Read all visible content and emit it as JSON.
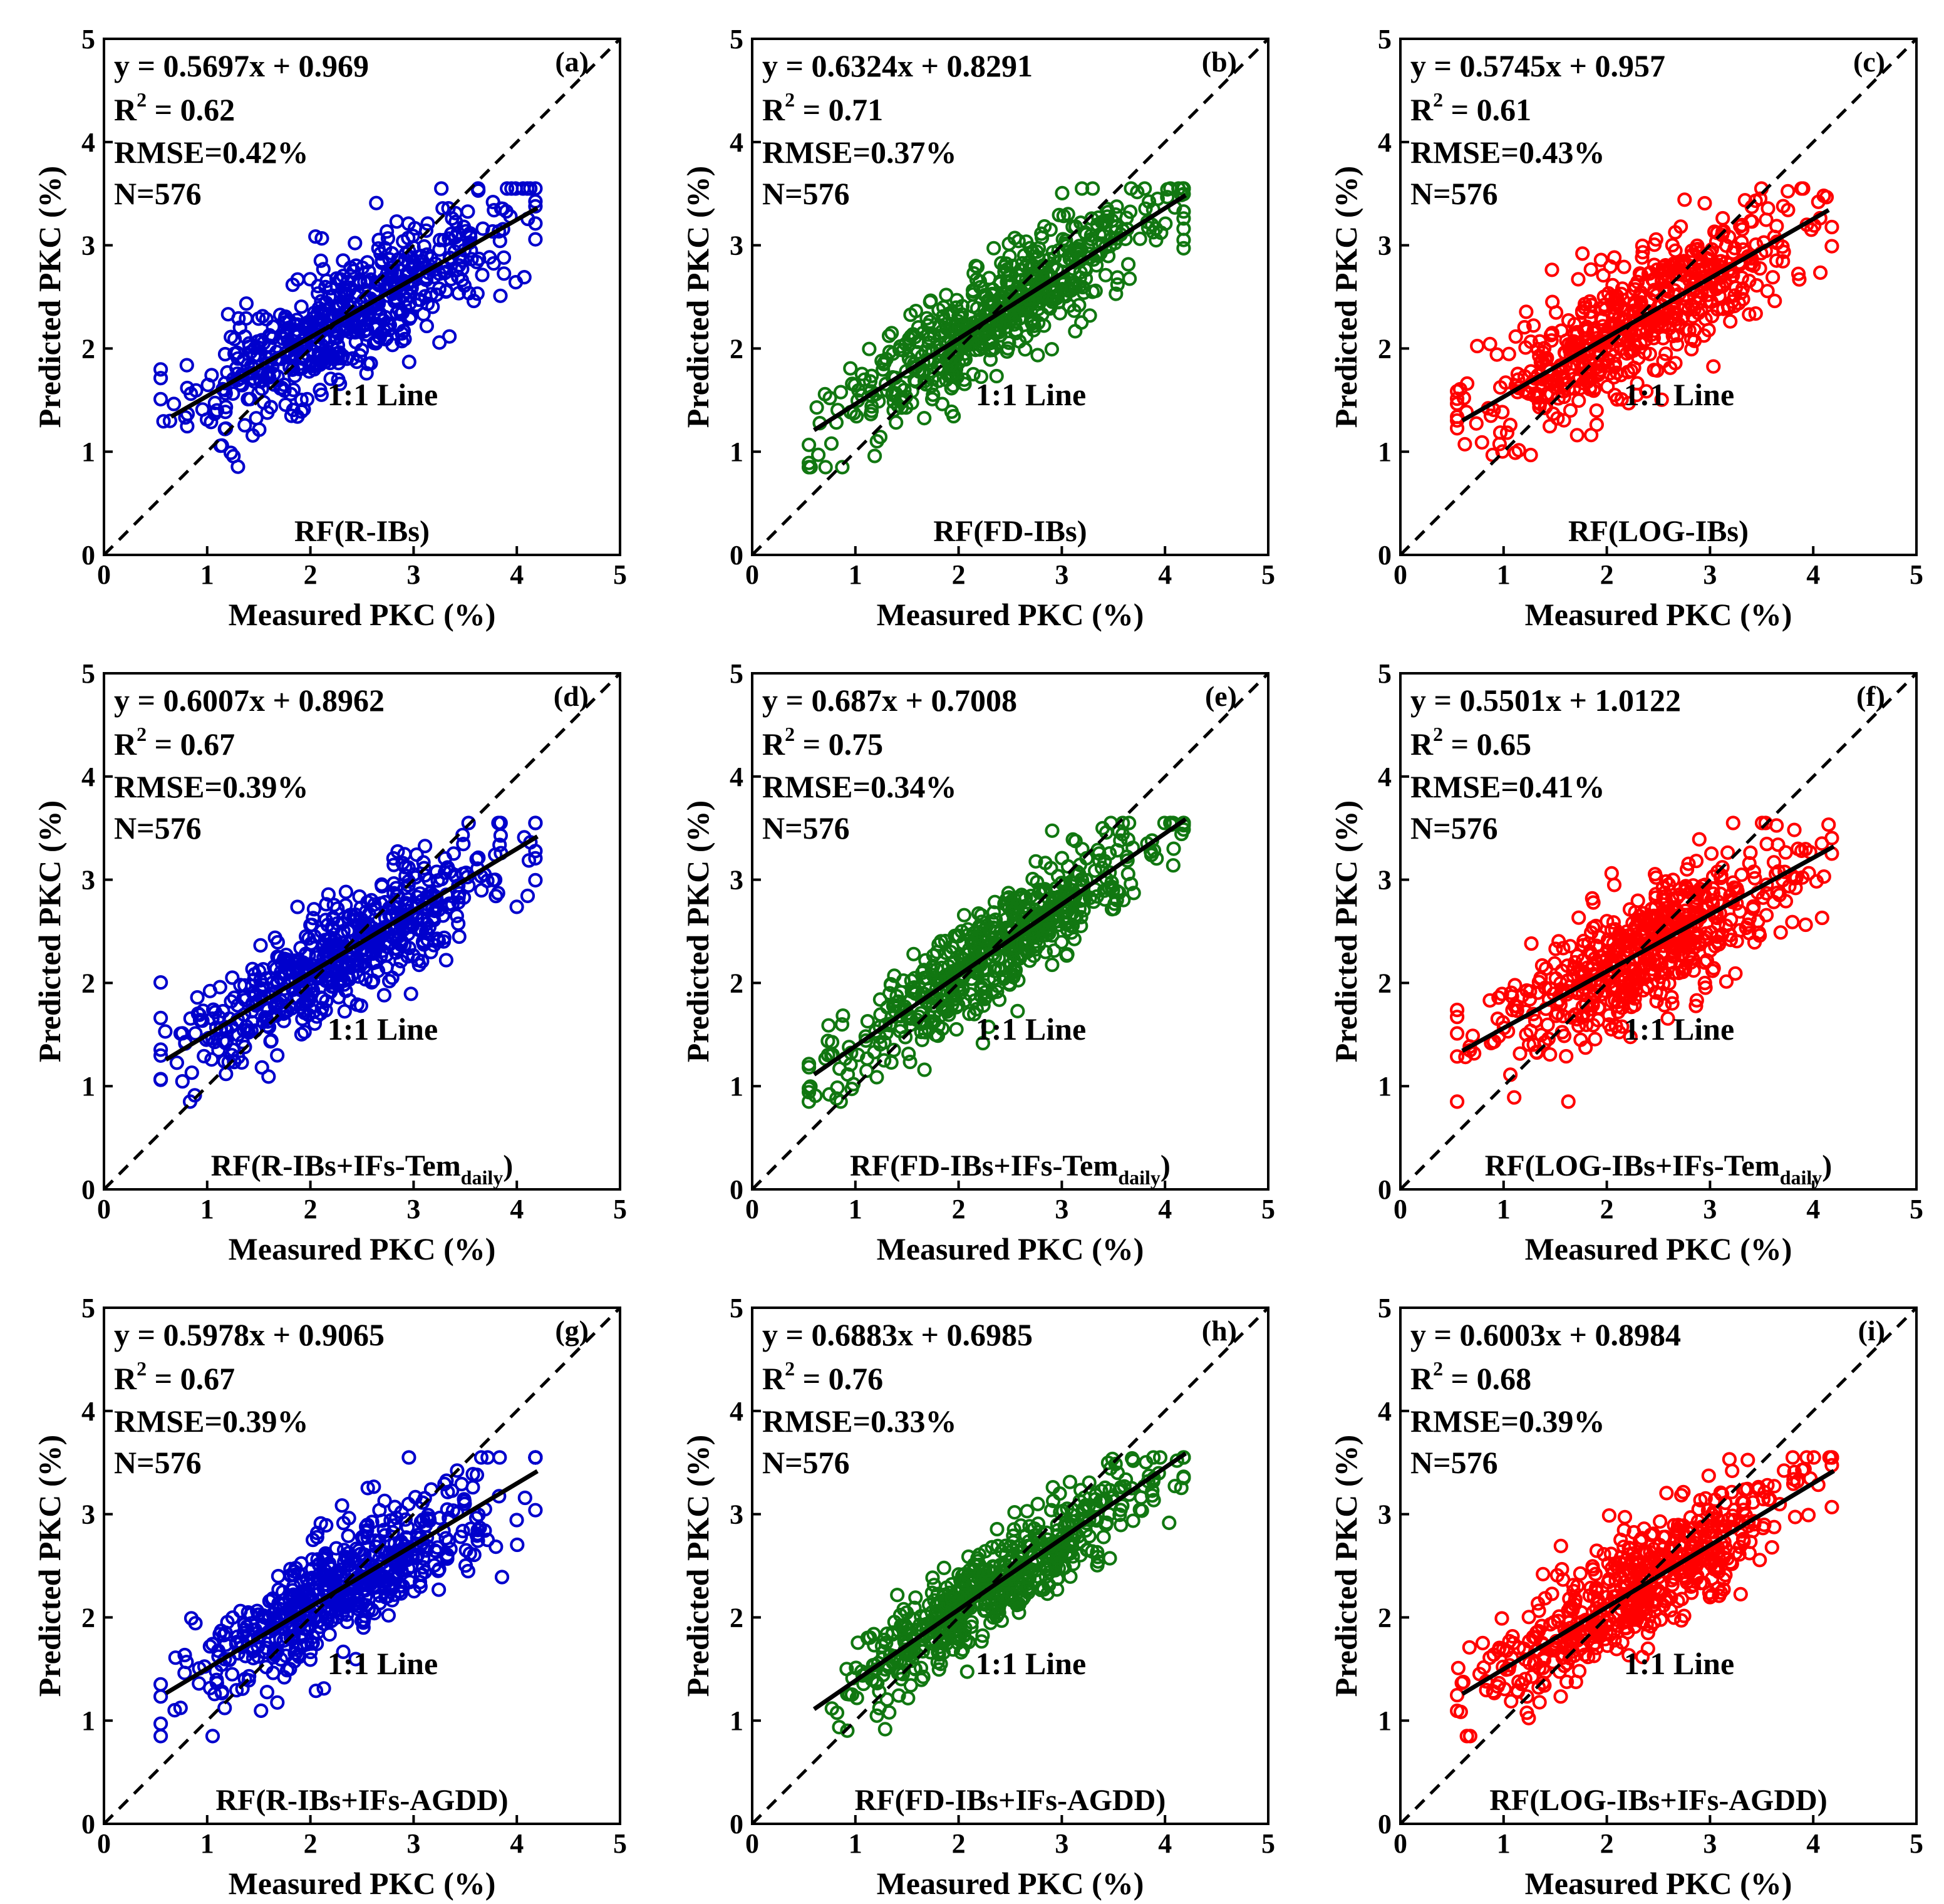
{
  "figure": {
    "description_free": true
  },
  "chart_data": [
    {
      "id": "a",
      "type": "scatter",
      "series_color": "#0000cc",
      "panel_label": "(a)",
      "model_label": "RF(R-IBs)",
      "model_sub": "",
      "model_tail": "",
      "equation": "y = 0.5697x + 0.969",
      "slope": 0.5697,
      "intercept": 0.969,
      "r2_label": "R",
      "r2_sup": "2",
      "r2_value": " = 0.62",
      "rmse": "RMSE=0.42%",
      "n": "N=576",
      "one_to_one": "1:1 Line",
      "xlabel": "Measured PKC (%)",
      "ylabel": "Predicted PKC (%)",
      "xlim": [
        0,
        5
      ],
      "ylim": [
        0,
        5
      ],
      "xticks": [
        "0",
        "1",
        "2",
        "3",
        "4",
        "5"
      ],
      "yticks": [
        "0",
        "1",
        "2",
        "3",
        "4",
        "5"
      ],
      "fit_x_range": [
        0.65,
        4.2
      ],
      "point_count": 576,
      "seed": 11,
      "noise": 0.3
    },
    {
      "id": "b",
      "type": "scatter",
      "series_color": "#117711",
      "panel_label": "(b)",
      "model_label": "RF(FD-IBs)",
      "model_sub": "",
      "model_tail": "",
      "equation": "y = 0.6324x + 0.8291",
      "slope": 0.6324,
      "intercept": 0.8291,
      "r2_label": "R",
      "r2_sup": "2",
      "r2_value": " = 0.71",
      "rmse": "RMSE=0.37%",
      "n": "N=576",
      "one_to_one": "1:1 Line",
      "xlabel": "Measured PKC (%)",
      "ylabel": "Predicted PKC (%)",
      "xlim": [
        0,
        5
      ],
      "ylim": [
        0,
        5
      ],
      "xticks": [
        "0",
        "1",
        "2",
        "3",
        "4",
        "5"
      ],
      "yticks": [
        "0",
        "1",
        "2",
        "3",
        "4",
        "5"
      ],
      "fit_x_range": [
        0.6,
        4.2
      ],
      "point_count": 576,
      "seed": 23,
      "noise": 0.26
    },
    {
      "id": "c",
      "type": "scatter",
      "series_color": "#ff0000",
      "panel_label": "(c)",
      "model_label": "RF(LOG-IBs)",
      "model_sub": "",
      "model_tail": "",
      "equation": "y = 0.5745x + 0.957",
      "slope": 0.5745,
      "intercept": 0.957,
      "r2_label": "R",
      "r2_sup": "2",
      "r2_value": " = 0.61",
      "rmse": "RMSE=0.43%",
      "n": "N=576",
      "one_to_one": "1:1 Line",
      "xlabel": "Measured PKC (%)",
      "ylabel": "Predicted PKC (%)",
      "xlim": [
        0,
        5
      ],
      "ylim": [
        0,
        5
      ],
      "xticks": [
        "0",
        "1",
        "2",
        "3",
        "4",
        "5"
      ],
      "yticks": [
        "0",
        "1",
        "2",
        "3",
        "4",
        "5"
      ],
      "fit_x_range": [
        0.6,
        4.15
      ],
      "point_count": 576,
      "seed": 37,
      "noise": 0.31
    },
    {
      "id": "d",
      "type": "scatter",
      "series_color": "#0000cc",
      "panel_label": "(d)",
      "model_label": "RF(R-IBs+IFs-Tem",
      "model_sub": "daily",
      "model_tail": ")",
      "equation": "y = 0.6007x + 0.8962",
      "slope": 0.6007,
      "intercept": 0.8962,
      "r2_label": "R",
      "r2_sup": "2",
      "r2_value": " = 0.67",
      "rmse": "RMSE=0.39%",
      "n": "N=576",
      "one_to_one": "1:1 Line",
      "xlabel": "Measured PKC (%)",
      "ylabel": "Predicted PKC (%)",
      "xlim": [
        0,
        5
      ],
      "ylim": [
        0,
        5
      ],
      "xticks": [
        "0",
        "1",
        "2",
        "3",
        "4",
        "5"
      ],
      "yticks": [
        "0",
        "1",
        "2",
        "3",
        "4",
        "5"
      ],
      "fit_x_range": [
        0.6,
        4.2
      ],
      "point_count": 576,
      "seed": 41,
      "noise": 0.28
    },
    {
      "id": "e",
      "type": "scatter",
      "series_color": "#117711",
      "panel_label": "(e)",
      "model_label": "RF(FD-IBs+IFs-Tem",
      "model_sub": "daily",
      "model_tail": ")",
      "equation": "y = 0.687x + 0.7008",
      "slope": 0.687,
      "intercept": 0.7008,
      "r2_label": "R",
      "r2_sup": "2",
      "r2_value": " = 0.75",
      "rmse": "RMSE=0.34%",
      "n": "N=576",
      "one_to_one": "1:1 Line",
      "xlabel": "Measured PKC (%)",
      "ylabel": "Predicted PKC (%)",
      "xlim": [
        0,
        5
      ],
      "ylim": [
        0,
        5
      ],
      "xticks": [
        "0",
        "1",
        "2",
        "3",
        "4",
        "5"
      ],
      "yticks": [
        "0",
        "1",
        "2",
        "3",
        "4",
        "5"
      ],
      "fit_x_range": [
        0.6,
        4.2
      ],
      "point_count": 576,
      "seed": 53,
      "noise": 0.24
    },
    {
      "id": "f",
      "type": "scatter",
      "series_color": "#ff0000",
      "panel_label": "(f)",
      "model_label": "RF(LOG-IBs+IFs-Tem",
      "model_sub": "daily",
      "model_tail": ")",
      "equation": "y = 0.5501x + 1.0122",
      "slope": 0.5501,
      "intercept": 1.0122,
      "r2_label": "R",
      "r2_sup": "2",
      "r2_value": " = 0.65",
      "rmse": "RMSE=0.41%",
      "n": "N=576",
      "one_to_one": "1:1 Line",
      "xlabel": "Measured PKC (%)",
      "ylabel": "Predicted PKC (%)",
      "xlim": [
        0,
        5
      ],
      "ylim": [
        0,
        5
      ],
      "xticks": [
        "0",
        "1",
        "2",
        "3",
        "4",
        "5"
      ],
      "yticks": [
        "0",
        "1",
        "2",
        "3",
        "4",
        "5"
      ],
      "fit_x_range": [
        0.6,
        4.2
      ],
      "point_count": 576,
      "seed": 67,
      "noise": 0.29
    },
    {
      "id": "g",
      "type": "scatter",
      "series_color": "#0000cc",
      "panel_label": "(g)",
      "model_label": "RF(R-IBs+IFs-AGDD)",
      "model_sub": "",
      "model_tail": "",
      "equation": "y = 0.5978x + 0.9065",
      "slope": 0.5978,
      "intercept": 0.9065,
      "r2_label": "R",
      "r2_sup": "2",
      "r2_value": " = 0.67",
      "rmse": "RMSE=0.39%",
      "n": "N=576",
      "one_to_one": "1:1 Line",
      "xlabel": "Measured PKC (%)",
      "ylabel": "Predicted PKC (%)",
      "xlim": [
        0,
        5
      ],
      "ylim": [
        0,
        5
      ],
      "xticks": [
        "0",
        "1",
        "2",
        "3",
        "4",
        "5"
      ],
      "yticks": [
        "0",
        "1",
        "2",
        "3",
        "4",
        "5"
      ],
      "fit_x_range": [
        0.6,
        4.2
      ],
      "point_count": 576,
      "seed": 71,
      "noise": 0.28
    },
    {
      "id": "h",
      "type": "scatter",
      "series_color": "#117711",
      "panel_label": "(h)",
      "model_label": "RF(FD-IBs+IFs-AGDD)",
      "model_sub": "",
      "model_tail": "",
      "equation": "y = 0.6883x + 0.6985",
      "slope": 0.6883,
      "intercept": 0.6985,
      "r2_label": "R",
      "r2_sup": "2",
      "r2_value": " = 0.76",
      "rmse": "RMSE=0.33%",
      "n": "N=576",
      "one_to_one": "1:1 Line",
      "xlabel": "Measured PKC (%)",
      "ylabel": "Predicted PKC (%)",
      "xlim": [
        0,
        5
      ],
      "ylim": [
        0,
        5
      ],
      "xticks": [
        "0",
        "1",
        "2",
        "3",
        "4",
        "5"
      ],
      "yticks": [
        "0",
        "1",
        "2",
        "3",
        "4",
        "5"
      ],
      "fit_x_range": [
        0.6,
        4.2
      ],
      "point_count": 576,
      "seed": 83,
      "noise": 0.23
    },
    {
      "id": "i",
      "type": "scatter",
      "series_color": "#ff0000",
      "panel_label": "(i)",
      "model_label": "RF(LOG-IBs+IFs-AGDD)",
      "model_sub": "",
      "model_tail": "",
      "equation": "y = 0.6003x + 0.8984",
      "slope": 0.6003,
      "intercept": 0.8984,
      "r2_label": "R",
      "r2_sup": "2",
      "r2_value": " = 0.68",
      "rmse": "RMSE=0.39%",
      "n": "N=576",
      "one_to_one": "1:1 Line",
      "xlabel": "Measured PKC (%)",
      "ylabel": "Predicted PKC (%)",
      "xlim": [
        0,
        5
      ],
      "ylim": [
        0,
        5
      ],
      "xticks": [
        "0",
        "1",
        "2",
        "3",
        "4",
        "5"
      ],
      "yticks": [
        "0",
        "1",
        "2",
        "3",
        "4",
        "5"
      ],
      "fit_x_range": [
        0.6,
        4.2
      ],
      "point_count": 576,
      "seed": 97,
      "noise": 0.28
    }
  ]
}
